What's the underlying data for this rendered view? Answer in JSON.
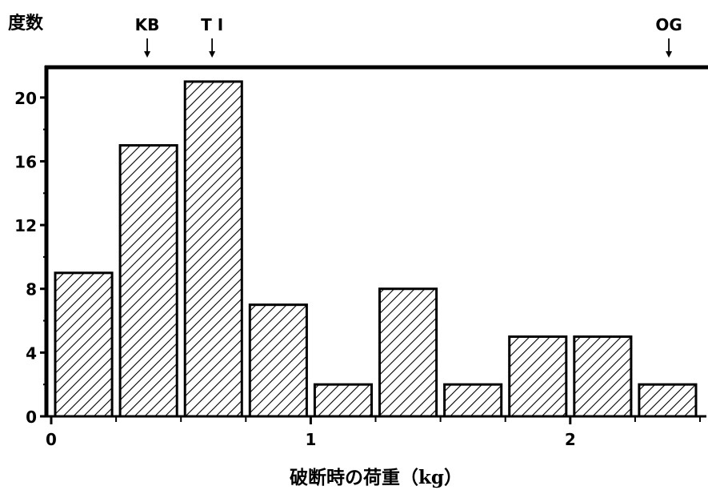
{
  "chart_data": {
    "type": "bar",
    "ylabel": "度数",
    "xlabel": "破断時の荷重（kg）",
    "xlim": [
      0,
      2.5
    ],
    "ylim": [
      0,
      22
    ],
    "bin_width": 0.25,
    "bins": [
      {
        "x_start": 0.0,
        "value": 9
      },
      {
        "x_start": 0.25,
        "value": 17
      },
      {
        "x_start": 0.5,
        "value": 21
      },
      {
        "x_start": 0.75,
        "value": 7
      },
      {
        "x_start": 1.0,
        "value": 2
      },
      {
        "x_start": 1.25,
        "value": 8
      },
      {
        "x_start": 1.5,
        "value": 2
      },
      {
        "x_start": 1.75,
        "value": 5
      },
      {
        "x_start": 2.0,
        "value": 5
      },
      {
        "x_start": 2.25,
        "value": 2
      }
    ],
    "y_ticks": [
      {
        "value": 0,
        "label": "0"
      },
      {
        "value": 4,
        "label": "4"
      },
      {
        "value": 8,
        "label": "8"
      },
      {
        "value": 12,
        "label": "12"
      },
      {
        "value": 16,
        "label": "16"
      },
      {
        "value": 20,
        "label": "20"
      }
    ],
    "x_ticks": [
      {
        "value": 0,
        "label": "0"
      },
      {
        "value": 1,
        "label": "1"
      },
      {
        "value": 2,
        "label": "2"
      }
    ],
    "annotations": [
      {
        "label": "KB",
        "x": 0.37
      },
      {
        "label": "T I",
        "x": 0.62
      },
      {
        "label": "OG",
        "x": 2.38
      }
    ],
    "fill": "diagonal-hatch",
    "grid": false
  }
}
